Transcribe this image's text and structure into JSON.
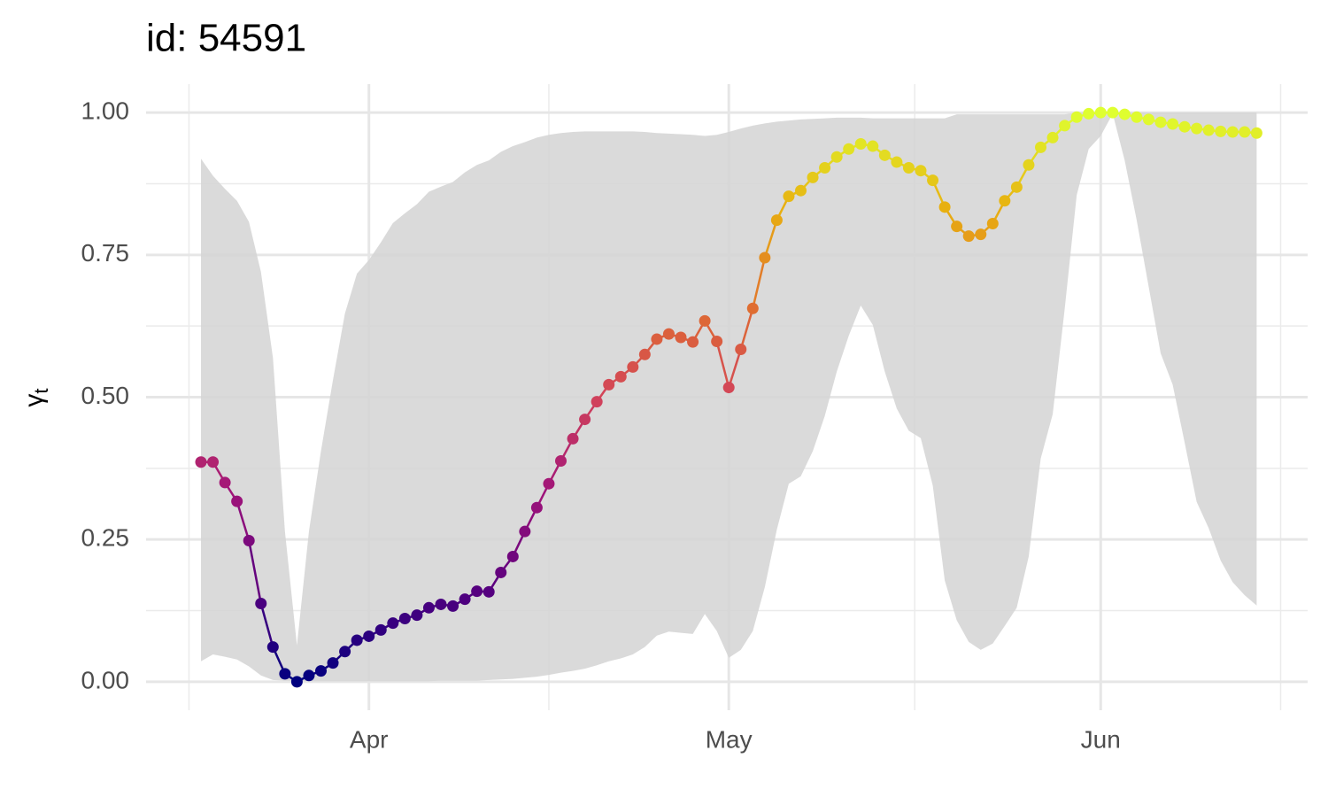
{
  "chart_data": {
    "type": "line",
    "title": "id: 54591",
    "ylabel": {
      "symbol": "γ",
      "subscript": "t"
    },
    "categories": [
      null,
      null,
      null,
      null,
      null,
      null,
      null,
      null,
      null,
      null,
      null,
      null,
      null,
      null,
      "Apr",
      null,
      null,
      null,
      null,
      null,
      null,
      null,
      null,
      null,
      null,
      null,
      null,
      null,
      null,
      null,
      null,
      null,
      null,
      null,
      null,
      null,
      null,
      null,
      null,
      null,
      null,
      null,
      null,
      null,
      "May",
      null,
      null,
      null,
      null,
      null,
      null,
      null,
      null,
      null,
      null,
      null,
      null,
      null,
      null,
      null,
      null,
      null,
      null,
      null,
      null,
      null,
      null,
      null,
      null,
      null,
      null,
      null,
      null,
      null,
      null,
      "Jun",
      null,
      null,
      null,
      null,
      null,
      null,
      null,
      null,
      null,
      null,
      null,
      null,
      null
    ],
    "values": [
      0.386,
      0.386,
      0.35,
      0.317,
      0.248,
      0.1375,
      0.061,
      0.014,
      0.0,
      0.011,
      0.019,
      0.033,
      0.053,
      0.073,
      0.08,
      0.091,
      0.103,
      0.111,
      0.117,
      0.13,
      0.136,
      0.133,
      0.145,
      0.159,
      0.158,
      0.192,
      0.22,
      0.264,
      0.306,
      0.348,
      0.388,
      0.427,
      0.461,
      0.492,
      0.522,
      0.536,
      0.553,
      0.575,
      0.602,
      0.611,
      0.605,
      0.597,
      0.634,
      0.598,
      0.517,
      0.584,
      0.656,
      0.745,
      0.811,
      0.853,
      0.863,
      0.886,
      0.903,
      0.922,
      0.936,
      0.945,
      0.941,
      0.925,
      0.913,
      0.903,
      0.898,
      0.881,
      0.834,
      0.8,
      0.783,
      0.786,
      0.805,
      0.845,
      0.869,
      0.908,
      0.939,
      0.956,
      0.977,
      0.992,
      0.998,
      1.0,
      1.0,
      0.997,
      0.992,
      0.988,
      0.983,
      0.98,
      0.975,
      0.972,
      0.969,
      0.967,
      0.966,
      0.966,
      0.964
    ],
    "band_upper": [
      0.919,
      0.889,
      0.866,
      0.845,
      0.808,
      0.72,
      0.569,
      0.264,
      0.064,
      0.264,
      0.405,
      0.53,
      0.647,
      0.717,
      0.741,
      0.772,
      0.806,
      0.823,
      0.839,
      0.861,
      0.87,
      0.878,
      0.895,
      0.908,
      0.916,
      0.931,
      0.941,
      0.948,
      0.956,
      0.961,
      0.964,
      0.966,
      0.967,
      0.967,
      0.967,
      0.967,
      0.967,
      0.966,
      0.964,
      0.963,
      0.962,
      0.961,
      0.959,
      0.961,
      0.966,
      0.972,
      0.977,
      0.981,
      0.984,
      0.986,
      0.988,
      0.989,
      0.99,
      0.991,
      0.991,
      0.991,
      0.99,
      0.99,
      0.99,
      0.99,
      0.99,
      0.99,
      0.99,
      0.997,
      0.997,
      0.997,
      0.997,
      0.997,
      0.997,
      0.997,
      0.997,
      0.997,
      0.997,
      1.0,
      1.0,
      1.0,
      1.0,
      1.0,
      1.0,
      1.0,
      1.0,
      1.0,
      1.0,
      1.0,
      1.0,
      1.0,
      1.0,
      1.0,
      1.0
    ],
    "band_lower": [
      0.036,
      0.048,
      0.044,
      0.039,
      0.027,
      0.011,
      0.003,
      0.002,
      0.001,
      0.001,
      0.001,
      0.001,
      0.001,
      0.001,
      0.001,
      0.001,
      0.001,
      0.001,
      0.001,
      0.001,
      0.002,
      0.002,
      0.002,
      0.002,
      0.003,
      0.004,
      0.005,
      0.007,
      0.009,
      0.012,
      0.016,
      0.019,
      0.023,
      0.029,
      0.036,
      0.041,
      0.048,
      0.061,
      0.081,
      0.088,
      0.086,
      0.084,
      0.119,
      0.089,
      0.042,
      0.056,
      0.089,
      0.166,
      0.267,
      0.348,
      0.361,
      0.405,
      0.467,
      0.545,
      0.608,
      0.661,
      0.627,
      0.545,
      0.48,
      0.441,
      0.428,
      0.345,
      0.178,
      0.108,
      0.07,
      0.056,
      0.067,
      0.098,
      0.13,
      0.22,
      0.392,
      0.47,
      0.655,
      0.855,
      0.936,
      0.959,
      0.998,
      0.916,
      0.811,
      0.694,
      0.577,
      0.522,
      0.42,
      0.316,
      0.27,
      0.213,
      0.175,
      0.152,
      0.134
    ],
    "band_color": "#d3d3d3",
    "colorscale": [
      "#00007f",
      "#5a007f",
      "#a0147a",
      "#d2435a",
      "#e0702e",
      "#e8b010",
      "#dfff30"
    ],
    "ylim": [
      -0.05,
      1.05
    ],
    "yticks": [
      {
        "value": 0,
        "label": "0.00"
      },
      {
        "value": 0.25,
        "label": "0.25"
      },
      {
        "value": 0.5,
        "label": "0.50"
      },
      {
        "value": 0.75,
        "label": "0.75"
      },
      {
        "value": 1,
        "label": "1.00"
      }
    ],
    "grid": true
  }
}
